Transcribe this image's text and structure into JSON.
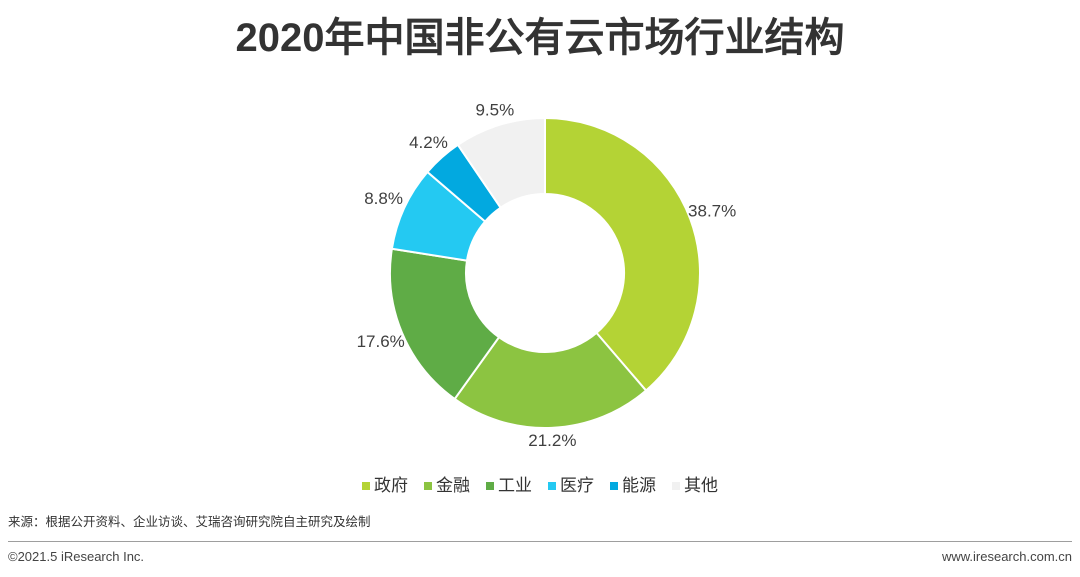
{
  "chart_data": {
    "type": "pie",
    "donut": true,
    "title": "2020年中国非公有云市场行业结构",
    "categories": [
      "政府",
      "金融",
      "工业",
      "医疗",
      "能源",
      "其他"
    ],
    "values": [
      38.7,
      21.2,
      17.6,
      8.8,
      4.2,
      9.5
    ],
    "labels": [
      "38.7%",
      "21.2%",
      "17.6%",
      "8.8%",
      "4.2%",
      "9.5%"
    ],
    "colors": [
      "#b4d335",
      "#8cc441",
      "#5fac46",
      "#24c9f2",
      "#02a9e0",
      "#f1f1f1"
    ],
    "legend": "bottom"
  },
  "source": "来源：根据公开资料、企业访谈、艾瑞咨询研究院自主研究及绘制",
  "footer": {
    "copyright": "©2021.5 iResearch Inc.",
    "website": "www.iresearch.com.cn"
  }
}
